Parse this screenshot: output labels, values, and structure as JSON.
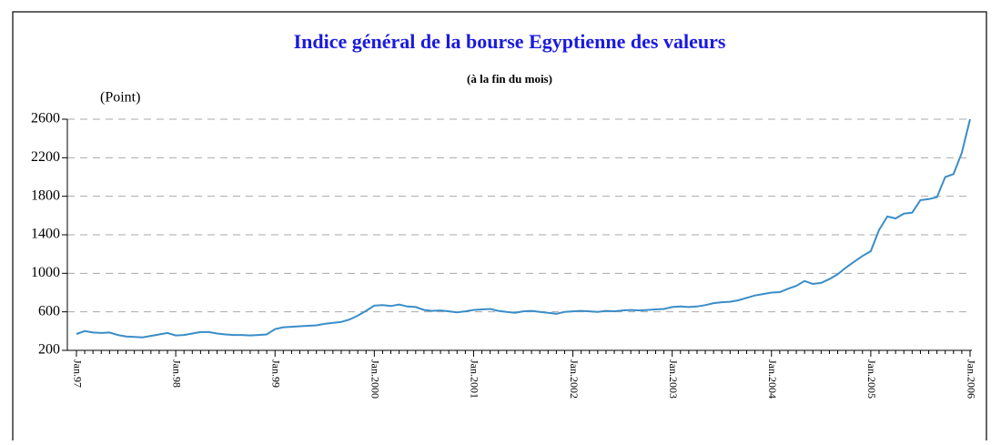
{
  "chart_data": {
    "type": "line",
    "title": "Indice général de la bourse Egyptienne des valeurs",
    "subtitle": "(à la fin du mois)",
    "y_label": "(Point)",
    "categories": [
      "Jan.97",
      null,
      null,
      null,
      null,
      null,
      null,
      null,
      null,
      null,
      null,
      null,
      "Jan.98",
      null,
      null,
      null,
      null,
      null,
      null,
      null,
      null,
      null,
      null,
      null,
      "Jan.99",
      null,
      null,
      null,
      null,
      null,
      null,
      null,
      null,
      null,
      null,
      null,
      "Jan.2000",
      null,
      null,
      null,
      null,
      null,
      null,
      null,
      null,
      null,
      null,
      null,
      "Jan.2001",
      null,
      null,
      null,
      null,
      null,
      null,
      null,
      null,
      null,
      null,
      null,
      "Jan.2002",
      null,
      null,
      null,
      null,
      null,
      null,
      null,
      null,
      null,
      null,
      null,
      "Jan.2003",
      null,
      null,
      null,
      null,
      null,
      null,
      null,
      null,
      null,
      null,
      null,
      "Jan.2004",
      null,
      null,
      null,
      null,
      null,
      null,
      null,
      null,
      null,
      null,
      null,
      "Jan.2005",
      null,
      null,
      null,
      null,
      null,
      null,
      null,
      null,
      null,
      null,
      null,
      "Jan.2006"
    ],
    "series": [
      {
        "name": "Indice",
        "color": "#3a8dc8",
        "values": [
          370,
          400,
          385,
          380,
          385,
          360,
          345,
          340,
          335,
          350,
          365,
          380,
          355,
          360,
          375,
          390,
          390,
          375,
          365,
          360,
          360,
          355,
          360,
          365,
          420,
          440,
          445,
          450,
          455,
          460,
          475,
          485,
          495,
          520,
          560,
          610,
          665,
          670,
          660,
          675,
          655,
          650,
          620,
          610,
          615,
          605,
          595,
          605,
          620,
          625,
          630,
          610,
          600,
          590,
          605,
          610,
          600,
          590,
          580,
          600,
          605,
          610,
          605,
          600,
          610,
          605,
          615,
          620,
          615,
          620,
          625,
          630,
          650,
          655,
          650,
          655,
          670,
          690,
          700,
          705,
          720,
          745,
          770,
          785,
          800,
          805,
          840,
          870,
          920,
          890,
          900,
          940,
          990,
          1060,
          1120,
          1180,
          1230,
          1450,
          1590,
          1570,
          1620,
          1630,
          1760,
          1770,
          1790,
          2000,
          2030,
          2250,
          2600
        ]
      }
    ],
    "ylim": [
      200,
      2600
    ],
    "yticks": [
      200,
      600,
      1000,
      1400,
      1800,
      2200,
      2600
    ],
    "grid": true
  }
}
